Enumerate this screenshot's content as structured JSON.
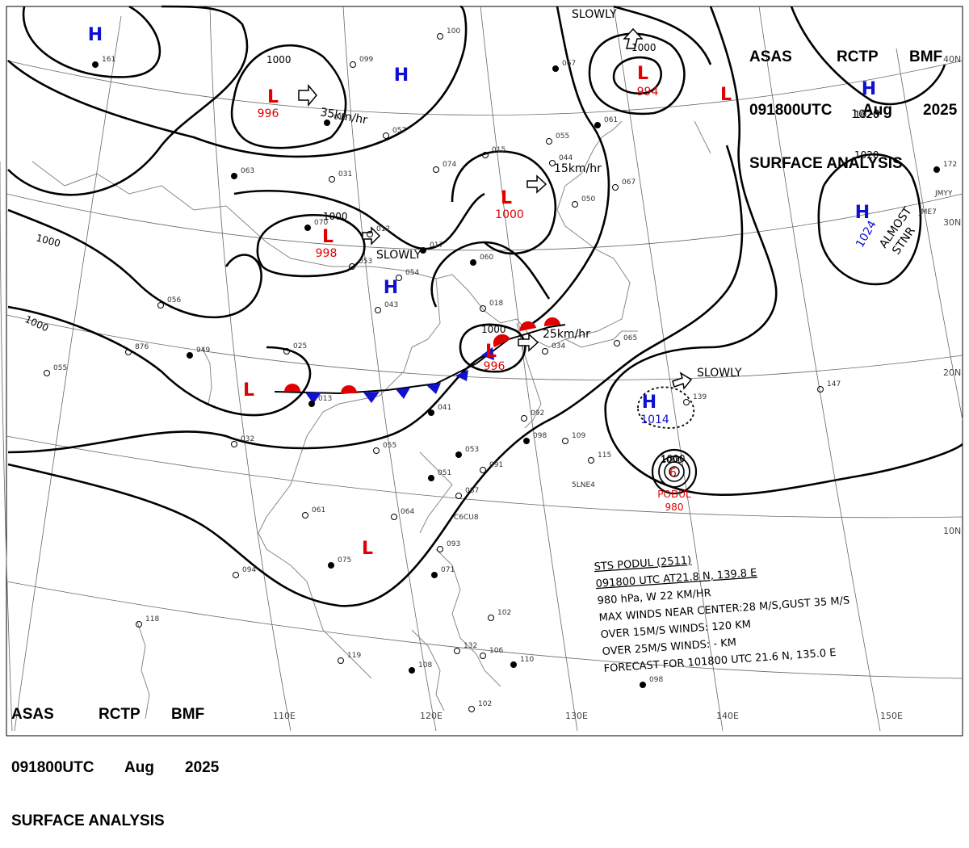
{
  "header": {
    "line1": [
      "ASAS",
      "RCTP",
      "BMF"
    ],
    "line2": [
      "091800UTC",
      "Aug",
      "2025"
    ],
    "line3": "SURFACE ANALYSIS"
  },
  "pressure_centers": [
    {
      "type": "H",
      "kind": "high",
      "pressure": ""
    },
    {
      "type": "L",
      "kind": "low",
      "pressure": "996"
    },
    {
      "type": "H",
      "kind": "high",
      "pressure": ""
    },
    {
      "type": "L",
      "kind": "low",
      "pressure": "994"
    },
    {
      "type": "L",
      "kind": "low",
      "pressure": ""
    },
    {
      "type": "H",
      "kind": "high",
      "pressure": "1020"
    },
    {
      "type": "L",
      "kind": "low",
      "pressure": "998"
    },
    {
      "type": "L",
      "kind": "low",
      "pressure": "1000"
    },
    {
      "type": "H",
      "kind": "high",
      "pressure": ""
    },
    {
      "type": "H",
      "kind": "high",
      "pressure": "1024"
    },
    {
      "type": "L",
      "kind": "low",
      "pressure": "996"
    },
    {
      "type": "L",
      "kind": "low",
      "pressure": ""
    },
    {
      "type": "H",
      "kind": "high",
      "pressure": "1014"
    },
    {
      "type": "L",
      "kind": "low",
      "pressure": ""
    }
  ],
  "isobar_labels": [
    "1000",
    "1000",
    "1000",
    "1000",
    "1000",
    "1000",
    "1020",
    "1000",
    "1020"
  ],
  "movement_labels": {
    "m1": "35km/hr",
    "m2": "15km/hr",
    "m3": "25km/hr",
    "m4": "SLOWLY",
    "m5": "SLOWLY",
    "m6": "SLOWLY",
    "m7": "ALMOST",
    "m8": "STNR"
  },
  "typhoon": {
    "name": "PODUL",
    "pressure": "980",
    "isobar": "1000",
    "info_lines": [
      "STS  PODUL  (2511)",
      "091800 UTC  AT21.8 N, 139.8 E",
      "980 hPa, W  22 KM/HR",
      "MAX WINDS NEAR CENTER:28 M/S,GUST 35 M/S",
      "OVER 15M/S WINDS: 120 KM",
      "OVER 25M/S WINDS: - KM",
      "FORECAST FOR 101800 UTC 21.6 N, 135.0 E"
    ]
  },
  "longitude_labels": [
    "110E",
    "120E",
    "130E",
    "140E",
    "150E"
  ],
  "latitude_labels": [
    "40N",
    "30N",
    "20N",
    "10N"
  ],
  "station_numbers": [
    "161",
    "099",
    "100",
    "067",
    "057",
    "015",
    "018",
    "074",
    "044",
    "063",
    "031",
    "012",
    "070",
    "053",
    "054",
    "017",
    "056",
    "043",
    "060",
    "018",
    "025",
    "949",
    "876",
    "055",
    "013",
    "034",
    "032",
    "041",
    "092",
    "055",
    "098",
    "109",
    "115",
    "053",
    "091",
    "087",
    "051",
    "064",
    "061",
    "075",
    "094",
    "093",
    "071",
    "118",
    "119",
    "108",
    "132",
    "106",
    "110",
    "102",
    "102",
    "098",
    "147",
    "139",
    "172",
    "050",
    "067",
    "061",
    "055",
    "065"
  ],
  "station_codes": [
    "5LNE4",
    "C6CU8",
    "JMYY",
    "JME7"
  ],
  "colors": {
    "low_red": "#e00000",
    "high_blue": "#1010d0",
    "warm_front": "#e00000",
    "cold_front": "#1010d0",
    "isobar": "#000000",
    "coast": "#808080"
  },
  "chart_data": {
    "type": "weather-map",
    "title": "ASAS RCTP BMF 091800UTC Aug 2025 SURFACE ANALYSIS",
    "centers": [
      {
        "label": "H"
      },
      {
        "label": "L",
        "value": 996
      },
      {
        "label": "H"
      },
      {
        "label": "L",
        "value": 994
      },
      {
        "label": "L"
      },
      {
        "label": "H",
        "value": 1020
      },
      {
        "label": "L",
        "value": 998
      },
      {
        "label": "L",
        "value": 1000
      },
      {
        "label": "H"
      },
      {
        "label": "H",
        "value": 1024
      },
      {
        "label": "L",
        "value": 996
      },
      {
        "label": "L"
      },
      {
        "label": "H",
        "value": 1014
      },
      {
        "label": "L"
      }
    ],
    "isobars_hPa": [
      1000,
      1020
    ],
    "typhoon": {
      "name": "PODUL",
      "id": "2511",
      "lat": 21.8,
      "lon": 139.8,
      "pressure": 980,
      "motion": "W 22 KM/HR",
      "max_wind_ms": 28,
      "gust_ms": 35,
      "r15_km": 120,
      "forecast": {
        "time": "101800 UTC",
        "lat": 21.6,
        "lon": 135.0
      }
    },
    "lon_ticks": [
      "110E",
      "120E",
      "130E",
      "140E",
      "150E"
    ],
    "lat_ticks": [
      "40N",
      "30N",
      "20N",
      "10N"
    ]
  }
}
